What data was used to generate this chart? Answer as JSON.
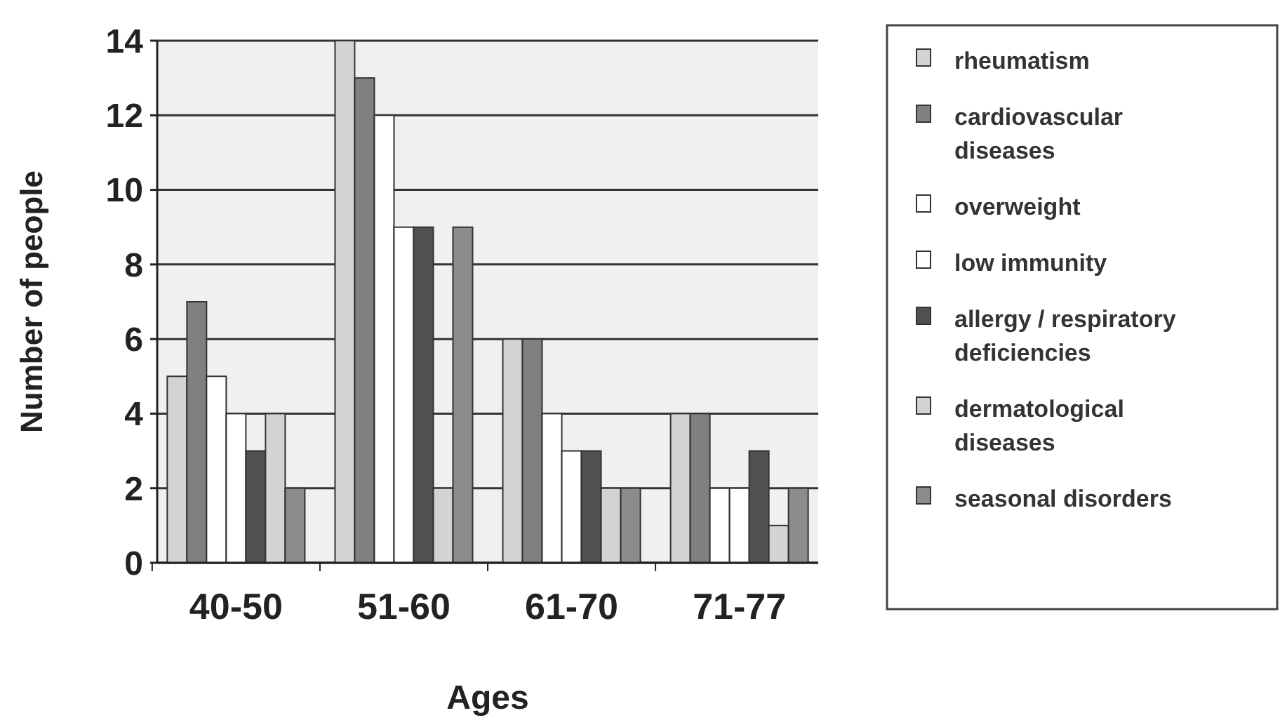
{
  "chart_data": {
    "type": "bar",
    "xlabel": "Ages",
    "ylabel": "Number of people",
    "categories": [
      "40-50",
      "51-60",
      "61-70",
      "71-77"
    ],
    "series": [
      {
        "name": "rheumatism",
        "color": "#d3d3d3",
        "values": [
          5,
          14,
          6,
          4
        ]
      },
      {
        "name": "cardiovascular diseases",
        "color": "#808080",
        "values": [
          7,
          13,
          6,
          4
        ]
      },
      {
        "name": "overweight",
        "color": "#ffffff",
        "values": [
          5,
          12,
          4,
          2
        ]
      },
      {
        "name": "low immunity",
        "color": "#ffffff",
        "values": [
          4,
          9,
          3,
          2
        ]
      },
      {
        "name": "allergy / respiratory deficiencies",
        "color": "#505050",
        "values": [
          3,
          9,
          3,
          3
        ]
      },
      {
        "name": "dermatological diseases",
        "color": "#d3d3d3",
        "values": [
          4,
          2,
          2,
          1
        ]
      },
      {
        "name": "seasonal disorders",
        "color": "#8c8c8c",
        "values": [
          2,
          9,
          2,
          2
        ]
      }
    ],
    "ylim": [
      0,
      14
    ],
    "yticks": [
      0,
      2,
      4,
      6,
      8,
      10,
      12,
      14
    ],
    "grid": "y",
    "legend": "right"
  }
}
